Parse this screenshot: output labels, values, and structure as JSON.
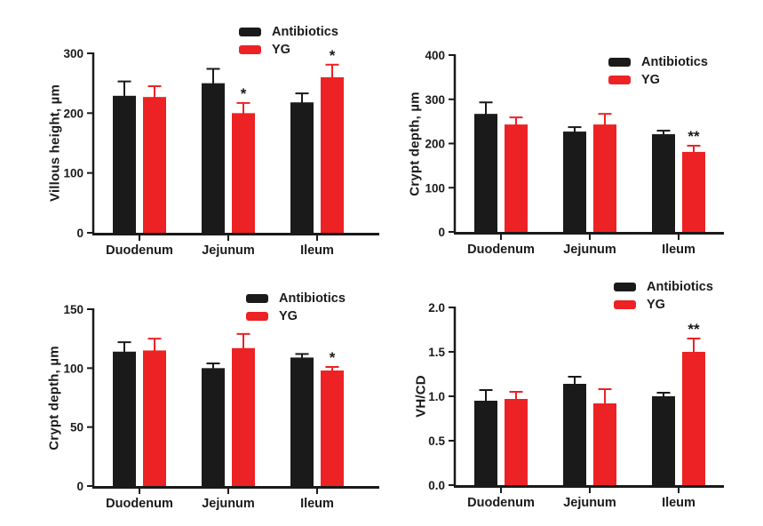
{
  "figure": {
    "background": "#ffffff",
    "text_color": "#1a1a1a",
    "series_colors": {
      "antibiotics": "#1a1a1a",
      "yg": "#ed2224"
    },
    "annotation_color": "#1a1a1a"
  },
  "chart_data": [
    {
      "type": "bar",
      "panel": "top-left",
      "title": "",
      "xlabel": "",
      "ylabel": "Villous height, µm",
      "ylim": [
        0,
        300
      ],
      "yticks": [
        0,
        100,
        200,
        300
      ],
      "ytick_labels": [
        "0",
        "100",
        "200",
        "300"
      ],
      "grid": false,
      "legend_position": "inside-top-right",
      "categories": [
        "Duodenum",
        "Jejunum",
        "Ileum"
      ],
      "series": [
        {
          "name": "Antibiotics",
          "color": "#1a1a1a",
          "values": [
            229,
            250,
            218
          ],
          "errors": [
            24,
            24,
            15
          ],
          "annotations": [
            "",
            "",
            ""
          ]
        },
        {
          "name": "YG",
          "color": "#ed2224",
          "values": [
            227,
            200,
            260
          ],
          "errors": [
            18,
            17,
            21
          ],
          "annotations": [
            "",
            "*",
            "*"
          ]
        }
      ]
    },
    {
      "type": "bar",
      "panel": "top-right",
      "title": "",
      "xlabel": "",
      "ylabel": "Crypt depth, µm",
      "ylim": [
        0,
        400
      ],
      "yticks": [
        0,
        100,
        200,
        300,
        400
      ],
      "ytick_labels": [
        "0",
        "100",
        "200",
        "300",
        "400"
      ],
      "grid": false,
      "legend_position": "inside-top-right",
      "categories": [
        "Duodenum",
        "Jejunum",
        "Ileum"
      ],
      "series": [
        {
          "name": "Antibiotics",
          "color": "#1a1a1a",
          "values": [
            267,
            227,
            221
          ],
          "errors": [
            26,
            10,
            8
          ],
          "annotations": [
            "",
            "",
            ""
          ]
        },
        {
          "name": "YG",
          "color": "#ed2224",
          "values": [
            243,
            243,
            181
          ],
          "errors": [
            16,
            24,
            14
          ],
          "annotations": [
            "",
            "",
            "**"
          ]
        }
      ]
    },
    {
      "type": "bar",
      "panel": "bottom-left",
      "title": "",
      "xlabel": "",
      "ylabel": "Crypt depth, µm",
      "ylim": [
        0,
        150
      ],
      "yticks": [
        0,
        50,
        100,
        150
      ],
      "ytick_labels": [
        "0",
        "50",
        "100",
        "150"
      ],
      "grid": false,
      "legend_position": "inside-top-right",
      "categories": [
        "Duodenum",
        "Jejunum",
        "Ileum"
      ],
      "series": [
        {
          "name": "Antibiotics",
          "color": "#1a1a1a",
          "values": [
            114,
            100,
            109
          ],
          "errors": [
            8,
            4,
            3
          ],
          "annotations": [
            "",
            "",
            ""
          ]
        },
        {
          "name": "YG",
          "color": "#ed2224",
          "values": [
            115,
            117,
            98
          ],
          "errors": [
            10,
            12,
            3
          ],
          "annotations": [
            "",
            "",
            "*"
          ]
        }
      ]
    },
    {
      "type": "bar",
      "panel": "bottom-right",
      "title": "",
      "xlabel": "",
      "ylabel": "VH/CD",
      "ylim": [
        0,
        2.0
      ],
      "yticks": [
        0,
        0.5,
        1.0,
        1.5,
        2.0
      ],
      "ytick_labels": [
        "0.0",
        "0.5",
        "1.0",
        "1.5",
        "2.0"
      ],
      "grid": false,
      "legend_position": "inside-top-right",
      "categories": [
        "Duodenum",
        "Jejunum",
        "Ileum"
      ],
      "series": [
        {
          "name": "Antibiotics",
          "color": "#1a1a1a",
          "values": [
            0.95,
            1.14,
            1.0
          ],
          "errors": [
            0.12,
            0.08,
            0.04
          ],
          "annotations": [
            "",
            "",
            ""
          ]
        },
        {
          "name": "YG",
          "color": "#ed2224",
          "values": [
            0.97,
            0.92,
            1.5
          ],
          "errors": [
            0.08,
            0.16,
            0.15
          ],
          "annotations": [
            "",
            "",
            "**"
          ]
        }
      ]
    }
  ]
}
